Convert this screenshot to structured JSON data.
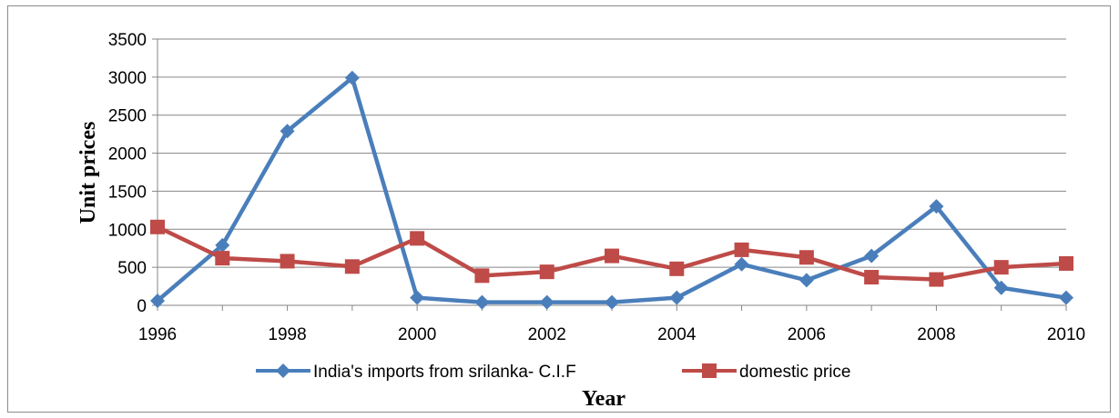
{
  "chart_data": {
    "type": "line",
    "title": "",
    "xlabel": "Year",
    "ylabel": "Unit prices",
    "x": [
      1996,
      1997,
      1998,
      1999,
      2000,
      2001,
      2002,
      2003,
      2004,
      2005,
      2006,
      2007,
      2008,
      2009,
      2010
    ],
    "xlim": [
      1996,
      2010
    ],
    "x_ticks": [
      "1996",
      "1998",
      "2000",
      "2002",
      "2004",
      "2006",
      "2008",
      "2010"
    ],
    "ylim": [
      0,
      3500
    ],
    "y_ticks": [
      "0",
      "500",
      "1000",
      "1500",
      "2000",
      "2500",
      "3000",
      "3500"
    ],
    "grid": "horizontal",
    "legend_position": "bottom",
    "series": [
      {
        "name": "India's imports from srilanka- C.I.F",
        "color": "#4a7ebb",
        "marker": "diamond",
        "values": [
          60,
          790,
          2290,
          2990,
          100,
          40,
          40,
          40,
          100,
          540,
          330,
          650,
          1300,
          230,
          100
        ]
      },
      {
        "name": "domestic price",
        "color": "#be4b48",
        "marker": "square",
        "values": [
          1030,
          620,
          580,
          510,
          880,
          390,
          440,
          650,
          480,
          730,
          630,
          370,
          340,
          500,
          550
        ]
      }
    ]
  }
}
